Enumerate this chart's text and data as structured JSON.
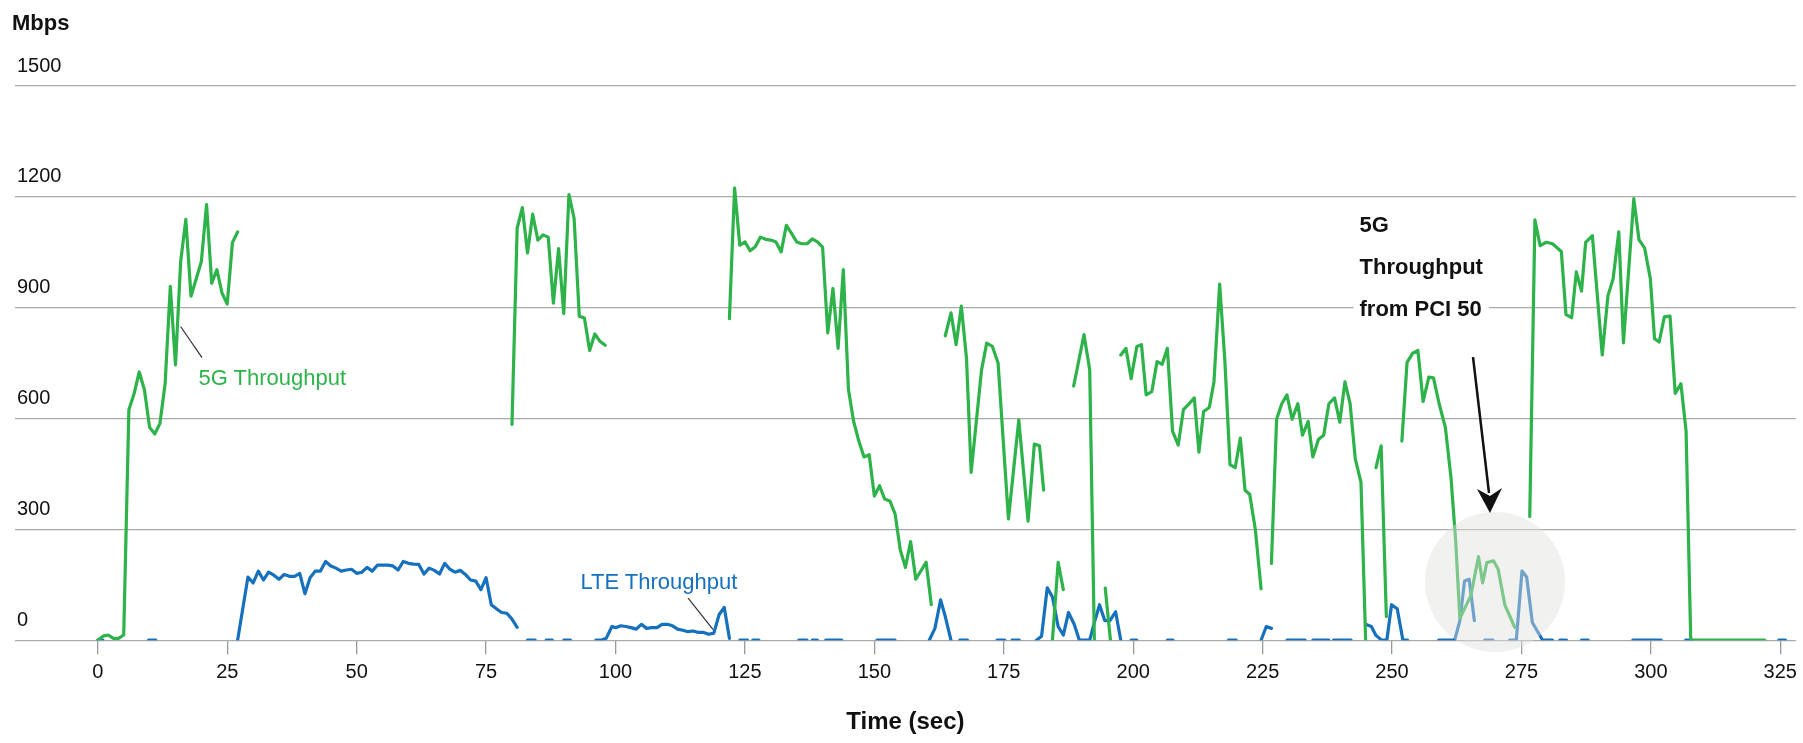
{
  "chart_data": {
    "type": "line",
    "xlabel": "Time (sec)",
    "ylabel": "Mbps",
    "xlim": [
      -16,
      328
    ],
    "xticks": [
      0,
      25,
      50,
      75,
      100,
      125,
      150,
      175,
      200,
      225,
      250,
      275,
      300,
      325
    ],
    "ylim": [
      0,
      1500
    ],
    "yticks": [
      0,
      300,
      600,
      900,
      1200,
      1500
    ],
    "grid": "y",
    "annotations": [
      "5G Throughput from PCI 50"
    ],
    "series": [
      {
        "name": "5G Throughput",
        "color": "#2db34a",
        "x": [
          0,
          1,
          2,
          3,
          4,
          5,
          6,
          7,
          8,
          9,
          10,
          11,
          12,
          13,
          14,
          15,
          16,
          17,
          18,
          20,
          21,
          22,
          23,
          24,
          25,
          26,
          27,
          50,
          80,
          81,
          82,
          83,
          84,
          85,
          86,
          87,
          88,
          89,
          90,
          91,
          92,
          93,
          94,
          95,
          96,
          97,
          98,
          110,
          122,
          123,
          124,
          125,
          126,
          127,
          128,
          129,
          130,
          131,
          132,
          133,
          134,
          135,
          136,
          137,
          138,
          139,
          140,
          141,
          142,
          143,
          144,
          145,
          146,
          147,
          148,
          149,
          150,
          151,
          152,
          153,
          154,
          155,
          156,
          157,
          158,
          160,
          161,
          162.5,
          163.7,
          164.8,
          165.8,
          166.8,
          167.8,
          168.7,
          170.7,
          171.7,
          172.8,
          173.9,
          175.9,
          177.9,
          179.7,
          180.9,
          181.9,
          182.7,
          183.5,
          184.4,
          185.5,
          186.5,
          187.5,
          188.5,
          190.5,
          191.6,
          192.5,
          193.5,
          194.6,
          195.6,
          196.6,
          197.6,
          198.6,
          199.6,
          200.7,
          201.6,
          202.5,
          203.6,
          204.6,
          205.6,
          206.6,
          207.6,
          208.7,
          209.7,
          210.8,
          211.8,
          212.7,
          213.6,
          214.7,
          215.6,
          216.7,
          217.7,
          218.7,
          219.7,
          220.7,
          221.6,
          222.5,
          223.6,
          224.7,
          225.7,
          226.7,
          227.7,
          228.7,
          229.7,
          230.7,
          231.8,
          232.7,
          233.8,
          234.7,
          235.8,
          236.8,
          237.8,
          238.9,
          239.9,
          240.9,
          241.9,
          242.9,
          244,
          244.9,
          245.9,
          246.9,
          247.9,
          248.9,
          250.4,
          251.9,
          252.9,
          254,
          255,
          256,
          257.1,
          258,
          259.1,
          260.3,
          261.4,
          262.3,
          263.1,
          265.2,
          266.7,
          267.5,
          268.3,
          269.6,
          270.5,
          271.8,
          273.7,
          275,
          276.6,
          277.6,
          278.6,
          279.8,
          281,
          282.7,
          283.6,
          284.7,
          285.6,
          286.6,
          287.4,
          288.7,
          290.6,
          291.7,
          292.7,
          293.8,
          294.7,
          296.7,
          297.7,
          298.8,
          299.9,
          300.7,
          301.6,
          302.6,
          303.7,
          304.7,
          305.8,
          306.8,
          307.7,
          322
        ],
        "values": [
          0,
          11,
          14,
          5,
          5,
          14,
          624,
          667,
          726,
          678,
          576,
          558,
          587,
          694,
          958,
          745,
          1025,
          1139,
          931,
          1025,
          1179,
          966,
          1003,
          939,
          910,
          1076,
          1105,
          null,
          584,
          1115,
          1171,
          1048,
          1153,
          1083,
          1097,
          1091,
          912,
          1060,
          884,
          1206,
          1142,
          877,
          872,
          784,
          829,
          809,
          798,
          null,
          870,
          1224,
          1069,
          1078,
          1054,
          1065,
          1091,
          1085,
          1083,
          1078,
          1051,
          1123,
          1101,
          1078,
          1073,
          1073,
          1086,
          1078,
          1064,
          832,
          952,
          790,
          1003,
          678,
          592,
          539,
          496,
          502,
          390,
          418,
          382,
          377,
          342,
          245,
          197,
          267,
          165,
          211,
          96,
          null,
          824,
          886,
          800,
          904,
          763,
          454,
          731,
          804,
          795,
          750,
          328,
          596,
          322,
          531,
          526,
          406,
          null,
          0,
          211,
          137,
          null,
          688,
          827,
          731,
          0,
          null,
          141,
          0,
          null,
          772,
          790,
          708,
          795,
          800,
          664,
          673,
          754,
          747,
          790,
          566,
          528,
          624,
          640,
          656,
          509,
          619,
          630,
          699,
          964,
          758,
          475,
          467,
          547,
          406,
          395,
          299,
          139,
          null,
          208,
          598,
          640,
          664,
          598,
          640,
          555,
          592,
          496,
          544,
          555,
          640,
          656,
          590,
          699,
          640,
          491,
          427,
          0,
          null,
          467,
          526,
          64,
          null,
          539,
          752,
          777,
          784,
          646,
          712,
          710,
          640,
          576,
          438,
          267,
          59,
          120,
          226,
          155,
          210,
          215,
          192,
          95,
          35,
          null,
          335,
          1138,
          1068,
          1077,
          1073,
          1052,
          881,
          873,
          997,
          945,
          1077,
          1095,
          772,
          932,
          978,
          1105,
          805,
          1195,
          1084,
          1061,
          978,
          816,
          807,
          875,
          877,
          668,
          694,
          566,
          0,
          0
        ]
      },
      {
        "name": "LTE Throughput",
        "color": "#1570be",
        "x": [
          0,
          1,
          5,
          9.8,
          11.2,
          19,
          27,
          29,
          30,
          31,
          32,
          33,
          34,
          35,
          36,
          37,
          38,
          39,
          40,
          41,
          42,
          43,
          44,
          45,
          46,
          47,
          48,
          49,
          50,
          51,
          52,
          53,
          54,
          55,
          56,
          57,
          58,
          59,
          60,
          61,
          62,
          63,
          64,
          65,
          66,
          67,
          68,
          69,
          70,
          71,
          72,
          73,
          74,
          75,
          76,
          77,
          78,
          79,
          80,
          81,
          82,
          83,
          84.5,
          85.5,
          86.6,
          87.8,
          89,
          90,
          91.3,
          93,
          96.2,
          97.2,
          98.2,
          99.3,
          100,
          101,
          102,
          103,
          104,
          105,
          106,
          107,
          108,
          109,
          110,
          111,
          112,
          113,
          114,
          115,
          116,
          117,
          118,
          119,
          120,
          121,
          122,
          123,
          124,
          125.5,
          126,
          126.5,
          127.7,
          131,
          135.4,
          137,
          137.5,
          138,
          139,
          140,
          140.6,
          143.7,
          147,
          150.5,
          154,
          157,
          160.6,
          161.7,
          162.8,
          163.7,
          164.8,
          165.6,
          166.5,
          168,
          170,
          173.7,
          175.2,
          176,
          176.6,
          178,
          180,
          181.3,
          182.3,
          183.4,
          184.4,
          185.5,
          186.5,
          187.5,
          188.6,
          189.6,
          191.6,
          192.5,
          193.5,
          194.5,
          195.5,
          196.6,
          197.6,
          198.6,
          199.6,
          200.7,
          203,
          206.6,
          207.7,
          212,
          218.4,
          219.9,
          222,
          224.7,
          225.7,
          226.7,
          228,
          229.7,
          233.2,
          234,
          234.7,
          237.8,
          238.2,
          238.7,
          242.1,
          243.5,
          244.9,
          246,
          246.9,
          248,
          249,
          249.9,
          251,
          252.1,
          253,
          256,
          259,
          262.1,
          263.1,
          264,
          264.9,
          265.9,
          266.9,
          267.9,
          269.5,
          271,
          272.7,
          274,
          275.1,
          276,
          277.1,
          279.1,
          281,
          281.7,
          282.4,
          283.7,
          285,
          286.6,
          287.9,
          292,
          296.5,
          302,
          304,
          306.7,
          308,
          316,
          324.7,
          326
        ],
        "values": [
          0,
          0,
          null,
          0,
          0,
          null,
          0,
          171,
          155,
          187,
          163,
          184,
          176,
          165,
          178,
          173,
          173,
          181,
          126,
          169,
          187,
          187,
          213,
          201,
          195,
          187,
          190,
          192,
          181,
          184,
          197,
          187,
          203,
          203,
          203,
          201,
          190,
          213,
          208,
          206,
          205,
          179,
          195,
          189,
          179,
          208,
          192,
          184,
          189,
          178,
          163,
          160,
          137,
          169,
          96,
          85,
          75,
          73,
          57,
          35,
          null,
          0,
          0,
          null,
          0,
          0,
          null,
          0,
          0,
          null,
          0,
          0,
          5,
          37,
          34,
          39,
          37,
          34,
          30,
          43,
          32,
          34,
          34,
          43,
          43,
          39,
          30,
          27,
          23,
          25,
          21,
          21,
          16,
          19,
          69,
          89,
          5,
          null,
          0,
          0,
          null,
          0,
          0,
          null,
          0,
          0,
          null,
          0,
          0,
          null,
          0,
          0,
          null,
          0,
          0,
          null,
          0,
          32,
          109,
          64,
          0,
          null,
          0,
          0,
          null,
          0,
          0,
          null,
          0,
          0,
          null,
          0,
          11,
          142,
          117,
          37,
          14,
          75,
          43,
          0,
          0,
          48,
          96,
          53,
          53,
          77,
          0,
          null,
          0,
          0,
          null,
          0,
          0,
          null,
          0,
          0,
          null,
          0,
          37,
          32,
          null,
          0,
          0,
          null,
          0,
          0,
          null,
          0,
          0,
          null,
          43,
          37,
          13,
          0,
          0,
          96,
          85,
          0,
          0,
          null,
          0,
          0,
          53,
          160,
          165,
          53,
          null,
          0,
          0,
          null,
          0,
          0,
          187,
          171,
          48,
          0,
          0,
          null,
          0,
          0,
          null,
          0,
          0,
          null,
          0,
          0,
          null,
          0,
          0,
          null,
          0,
          0
        ]
      }
    ]
  }
}
